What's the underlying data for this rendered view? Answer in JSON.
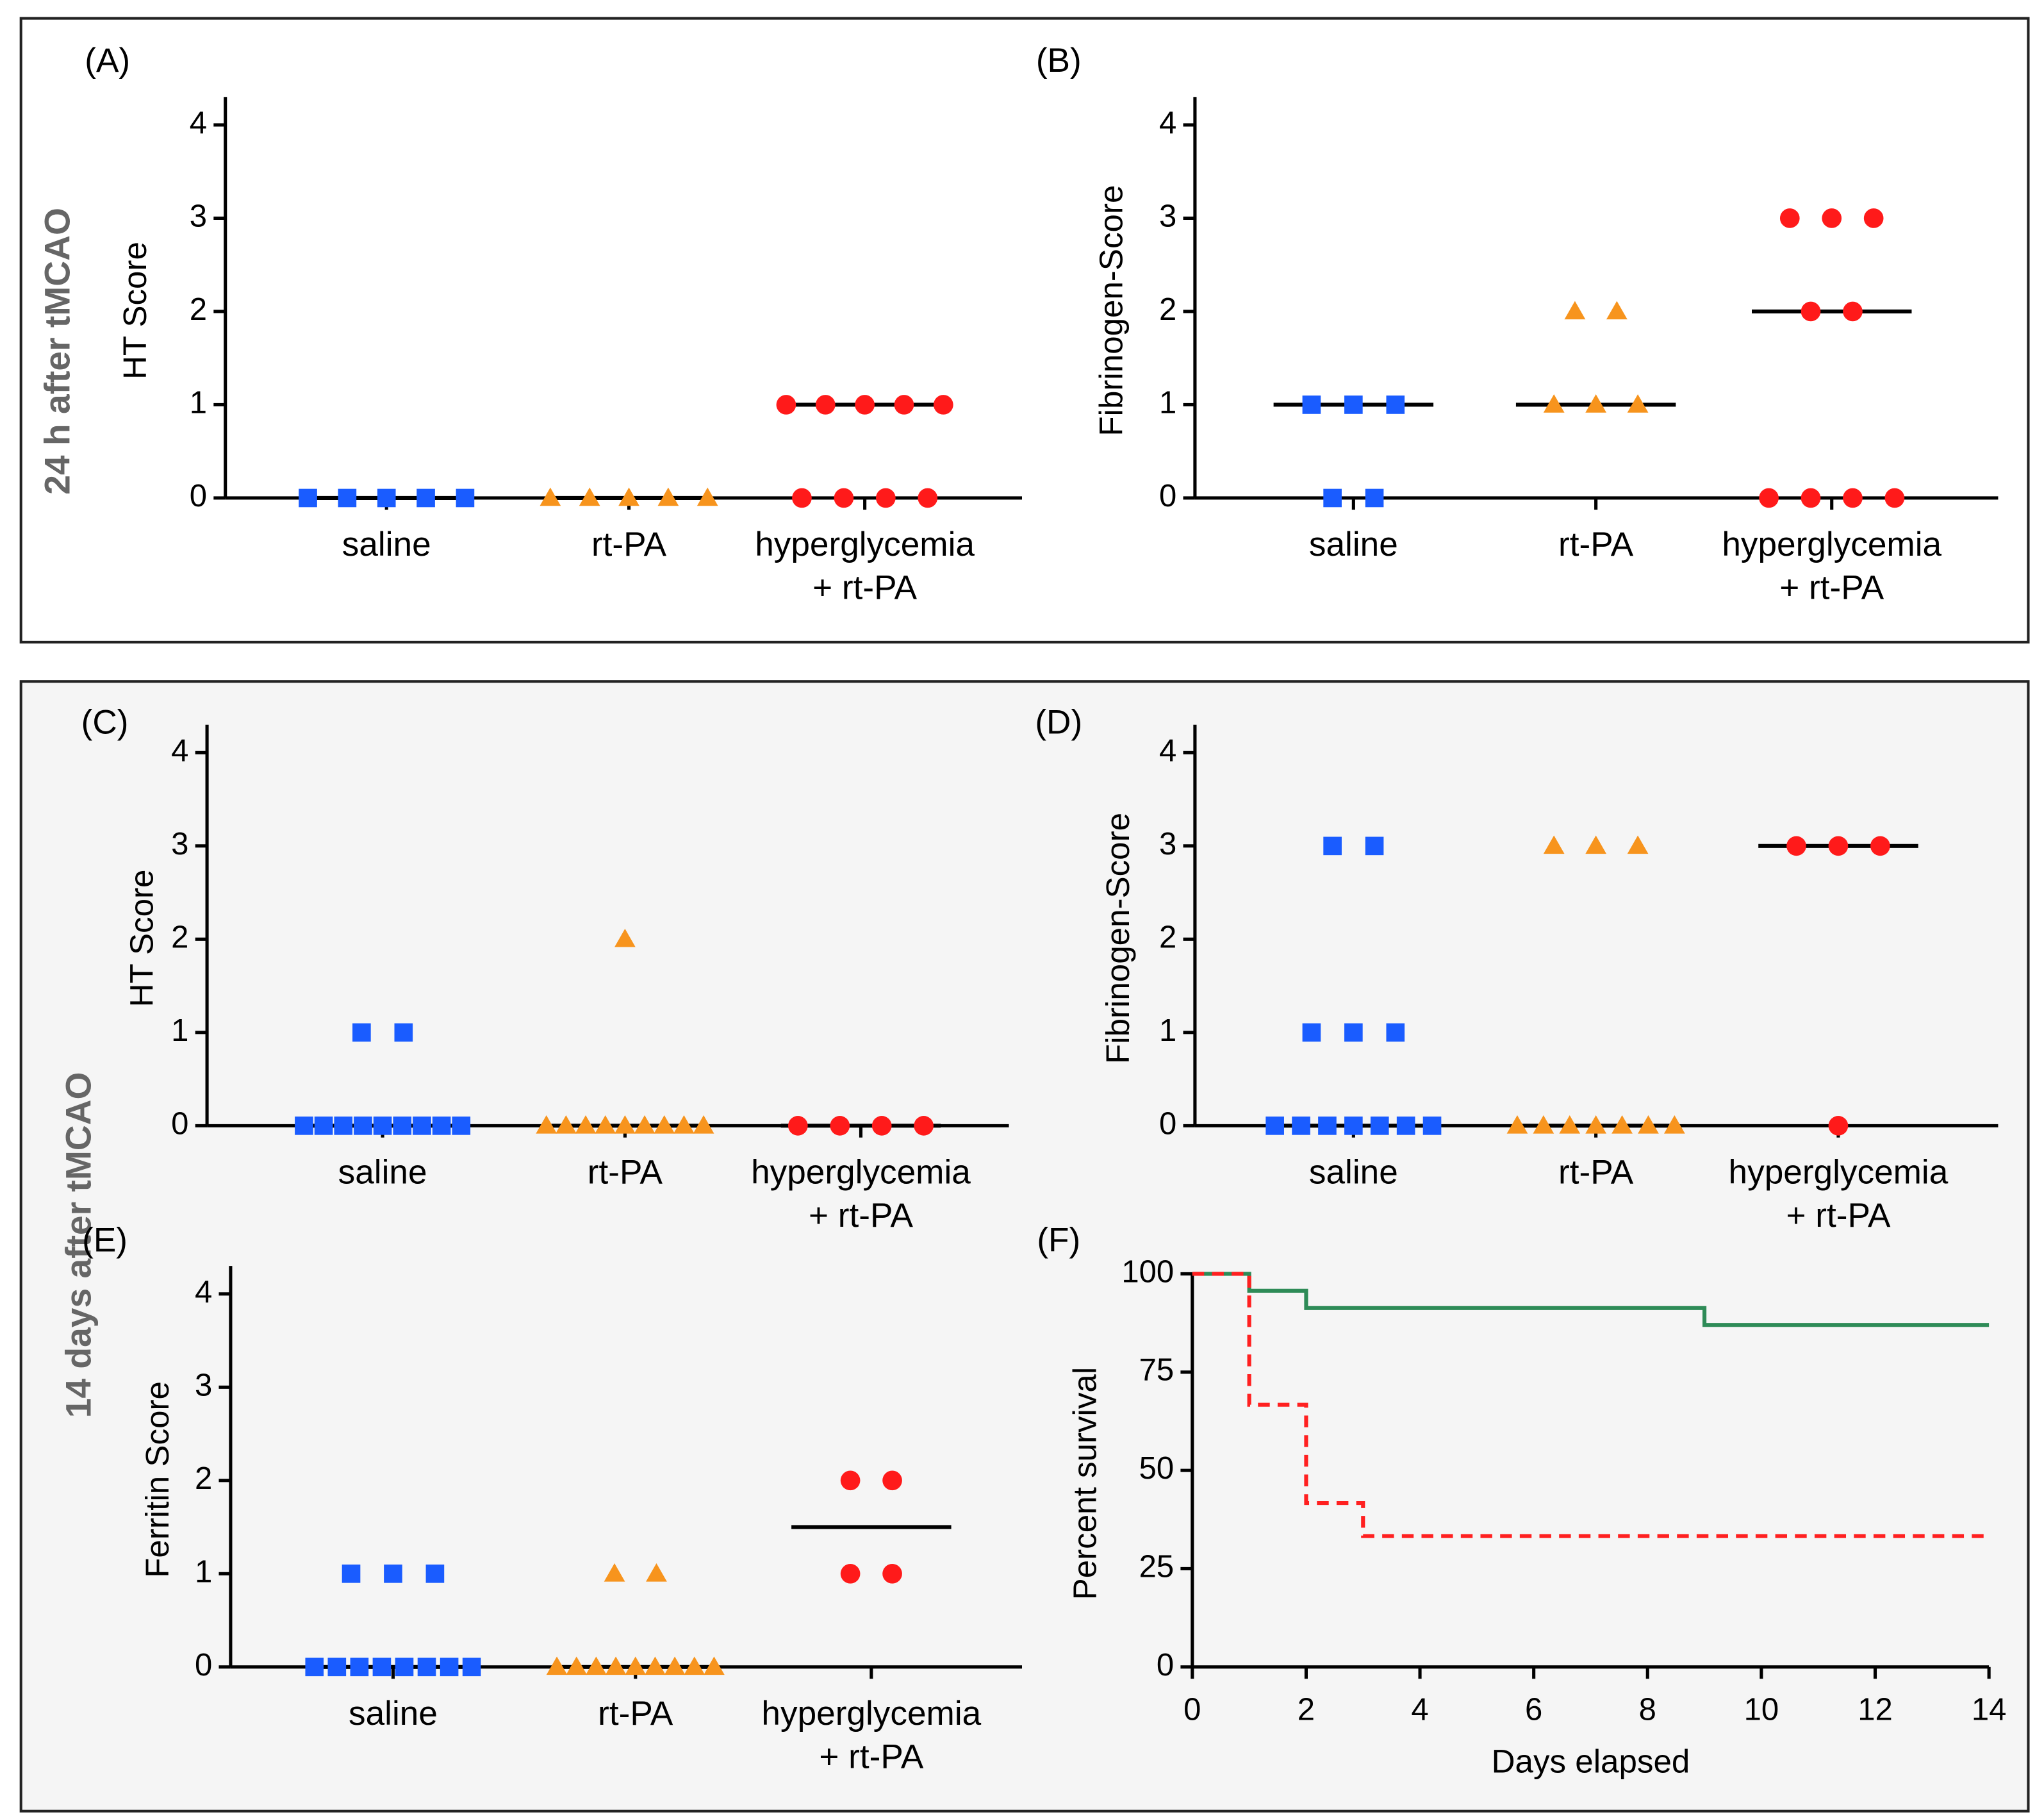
{
  "sections": [
    "24 h after tMCAO",
    "14 days after tMCAO"
  ],
  "chart_data": [
    {
      "type": "dot",
      "panel": "(A)",
      "ylabel": "HT Score",
      "categories": [
        "saline",
        "rt-PA",
        "hyperglycemia\n+ rt-PA"
      ],
      "colors": [
        "#1a5cff",
        "#f7941d",
        "#ff1a1a"
      ],
      "markers": [
        "square",
        "triangle",
        "circle"
      ],
      "points": [
        [
          0,
          0,
          0,
          0,
          0
        ],
        [
          0,
          0,
          0,
          0,
          0
        ],
        [
          1,
          1,
          1,
          1,
          1,
          0,
          0,
          0,
          0
        ]
      ],
      "medians": [
        0,
        0,
        1
      ],
      "ylim": [
        0,
        4.3
      ],
      "yticks": [
        0,
        1,
        2,
        3,
        4
      ]
    },
    {
      "type": "dot",
      "panel": "(B)",
      "ylabel": "Fibrinogen-Score",
      "categories": [
        "saline",
        "rt-PA",
        "hyperglycemia\n+ rt-PA"
      ],
      "colors": [
        "#1a5cff",
        "#f7941d",
        "#ff1a1a"
      ],
      "markers": [
        "square",
        "triangle",
        "circle"
      ],
      "points": [
        [
          1,
          1,
          1,
          0,
          0
        ],
        [
          2,
          2,
          1,
          1,
          1
        ],
        [
          3,
          3,
          3,
          2,
          2,
          0,
          0,
          0,
          0
        ]
      ],
      "medians": [
        1,
        1,
        2
      ],
      "ylim": [
        0,
        4.3
      ],
      "yticks": [
        0,
        1,
        2,
        3,
        4
      ]
    },
    {
      "type": "dot",
      "panel": "(C)",
      "ylabel": "HT Score",
      "categories": [
        "saline",
        "rt-PA",
        "hyperglycemia\n+ rt-PA"
      ],
      "colors": [
        "#1a5cff",
        "#f7941d",
        "#ff1a1a"
      ],
      "markers": [
        "square",
        "triangle",
        "circle"
      ],
      "points": [
        [
          1,
          1,
          0,
          0,
          0,
          0,
          0,
          0,
          0,
          0,
          0
        ],
        [
          2,
          0,
          0,
          0,
          0,
          0,
          0,
          0,
          0,
          0
        ],
        [
          0,
          0,
          0,
          0
        ]
      ],
      "medians": [
        0,
        0,
        0
      ],
      "ylim": [
        0,
        4.3
      ],
      "yticks": [
        0,
        1,
        2,
        3,
        4
      ]
    },
    {
      "type": "dot",
      "panel": "(D)",
      "ylabel": "Fibrinogen-Score",
      "categories": [
        "saline",
        "rt-PA",
        "hyperglycemia\n+ rt-PA"
      ],
      "colors": [
        "#1a5cff",
        "#f7941d",
        "#ff1a1a"
      ],
      "markers": [
        "square",
        "triangle",
        "circle"
      ],
      "points": [
        [
          3,
          3,
          1,
          1,
          1,
          0,
          0,
          0,
          0,
          0,
          0,
          0
        ],
        [
          3,
          3,
          3,
          0,
          0,
          0,
          0,
          0,
          0,
          0
        ],
        [
          3,
          3,
          3,
          0
        ]
      ],
      "medians": [
        0,
        0,
        3
      ],
      "ylim": [
        0,
        4.3
      ],
      "yticks": [
        0,
        1,
        2,
        3,
        4
      ]
    },
    {
      "type": "dot",
      "panel": "(E)",
      "ylabel": "Ferritin Score",
      "categories": [
        "saline",
        "rt-PA",
        "hyperglycemia\n+ rt-PA"
      ],
      "colors": [
        "#1a5cff",
        "#f7941d",
        "#ff1a1a"
      ],
      "markers": [
        "square",
        "triangle",
        "circle"
      ],
      "points": [
        [
          1,
          1,
          1,
          0,
          0,
          0,
          0,
          0,
          0,
          0,
          0
        ],
        [
          1,
          1,
          0,
          0,
          0,
          0,
          0,
          0,
          0,
          0,
          0
        ],
        [
          2,
          2,
          1,
          1
        ]
      ],
      "medians": [
        0,
        0,
        1.5
      ],
      "ylim": [
        0,
        4.3
      ],
      "yticks": [
        0,
        1,
        2,
        3,
        4
      ]
    },
    {
      "type": "line",
      "panel": "(F)",
      "xlabel": "Days elapsed",
      "ylabel": "Percent survival",
      "step": true,
      "xlim": [
        0,
        14
      ],
      "xticks": [
        0,
        2,
        4,
        6,
        8,
        10,
        12,
        14
      ],
      "ylim": [
        0,
        100
      ],
      "yticks": [
        0,
        25,
        50,
        75,
        100
      ],
      "series": [
        {
          "color": "#2e8b57",
          "dash": false,
          "x": [
            0,
            1,
            2,
            9,
            14
          ],
          "values": [
            100,
            95.7,
            91.3,
            87,
            87
          ]
        },
        {
          "color": "#ff2020",
          "dash": true,
          "x": [
            0,
            1,
            2,
            3,
            14
          ],
          "values": [
            100,
            66.7,
            41.7,
            33.3,
            33.3
          ]
        }
      ]
    }
  ]
}
